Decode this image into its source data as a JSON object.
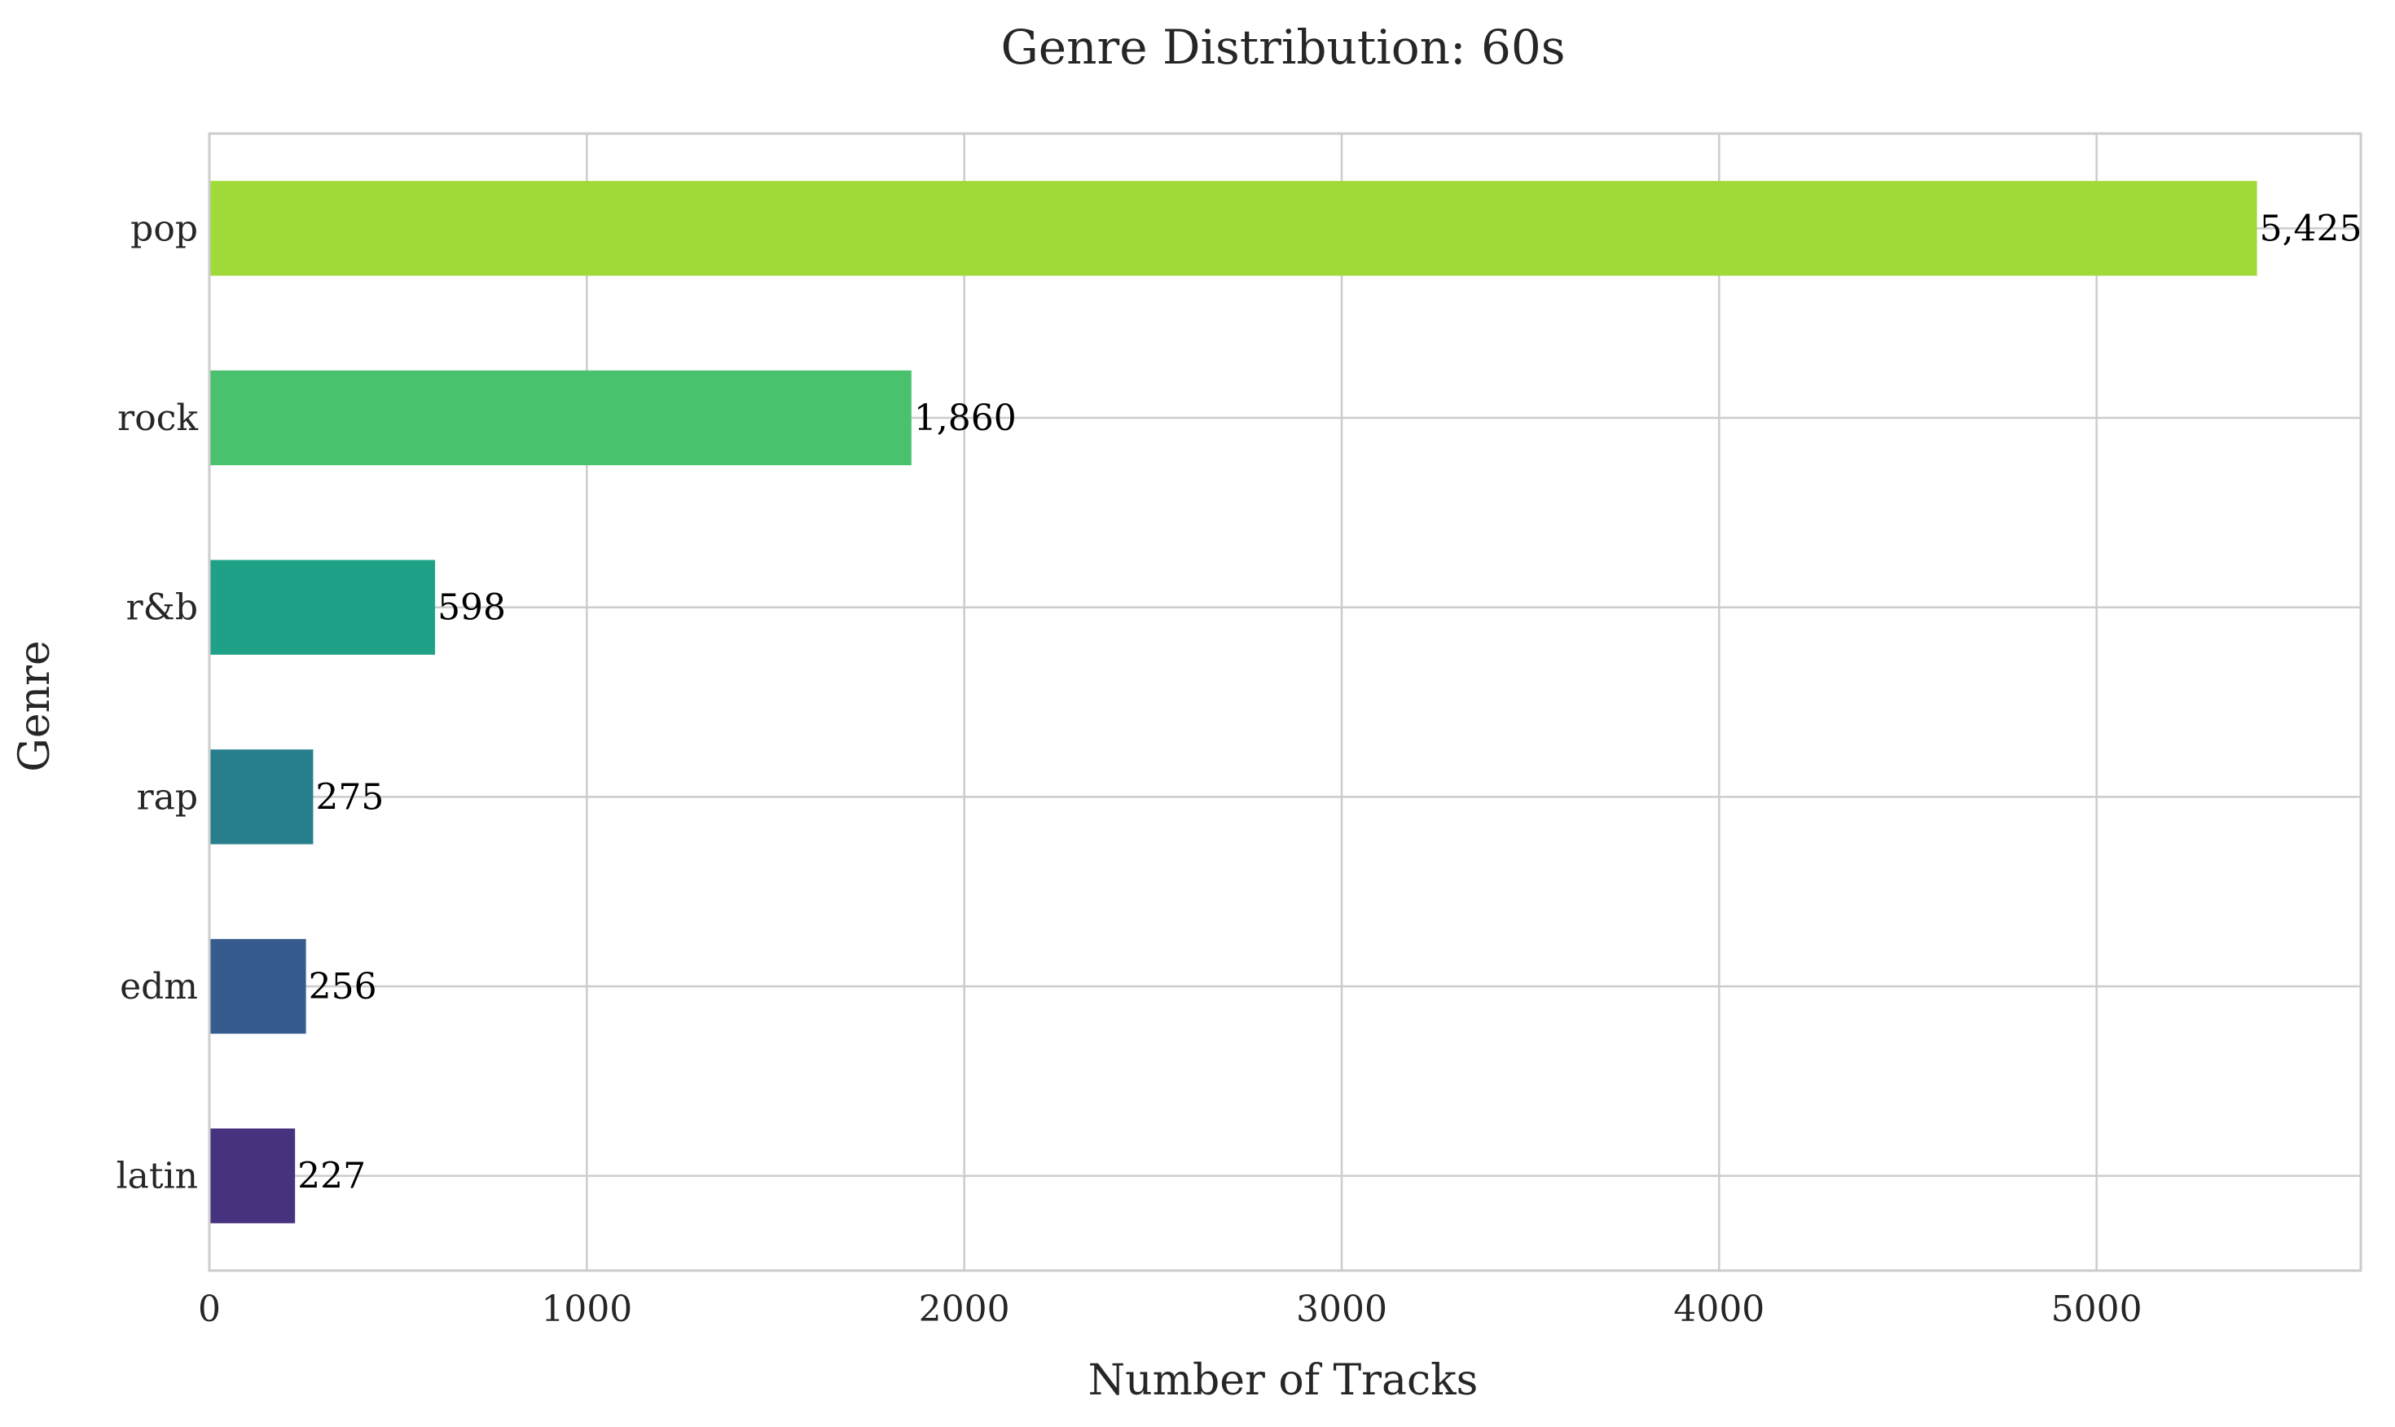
{
  "chart_data": {
    "type": "bar",
    "orientation": "horizontal",
    "title": "Genre Distribution: 60s",
    "xlabel": "Number of Tracks",
    "ylabel": "Genre",
    "categories": [
      "pop",
      "rock",
      "r&b",
      "rap",
      "edm",
      "latin"
    ],
    "values": [
      5425,
      1860,
      598,
      275,
      256,
      227
    ],
    "value_labels": [
      "5,425",
      "1,860",
      "598",
      "275",
      "256",
      "227"
    ],
    "colors": [
      "#a0da39",
      "#4ac16d",
      "#1fa187",
      "#277f8e",
      "#365c8d",
      "#46327e"
    ],
    "xlim": [
      0,
      5700
    ],
    "xticks": [
      0,
      1000,
      2000,
      3000,
      4000,
      5000
    ],
    "xtick_labels": [
      "0",
      "1000",
      "2000",
      "3000",
      "4000",
      "5000"
    ],
    "grid": true,
    "legend": "none"
  }
}
